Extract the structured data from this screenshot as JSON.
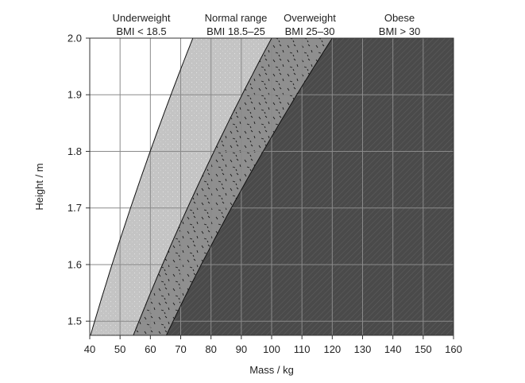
{
  "chart_data": {
    "type": "area",
    "xlabel": "Mass / kg",
    "ylabel": "Height / m",
    "xlim": [
      40,
      160
    ],
    "ylim": [
      1.475,
      2.0
    ],
    "x_ticks": [
      40,
      50,
      60,
      70,
      80,
      90,
      100,
      110,
      120,
      130,
      140,
      150,
      160
    ],
    "y_ticks": [
      1.5,
      1.6,
      1.7,
      1.8,
      1.9,
      2.0
    ],
    "y_tick_labels": [
      "1.5",
      "1.6",
      "1.7",
      "1.8",
      "1.9",
      "2.0"
    ],
    "grid": true,
    "boundaries_bmi": [
      18.5,
      25,
      30
    ],
    "regions": [
      {
        "name": "Underweight",
        "range": "BMI < 18.5",
        "bmi_min": 0,
        "bmi_max": 18.5,
        "color": "#ffffff",
        "pattern": "none"
      },
      {
        "name": "Normal range",
        "range": "BMI 18.5–25",
        "bmi_min": 18.5,
        "bmi_max": 25,
        "color": "#c4c4c4",
        "pattern": "speckle"
      },
      {
        "name": "Overweight",
        "range": "BMI 25–30",
        "bmi_min": 25,
        "bmi_max": 30,
        "color": "#8f8f8f",
        "pattern": "dashes"
      },
      {
        "name": "Obese",
        "range": "BMI > 30",
        "bmi_min": 30,
        "bmi_max": 1000,
        "color": "#4a4a4a",
        "pattern": "diagonal"
      }
    ]
  }
}
